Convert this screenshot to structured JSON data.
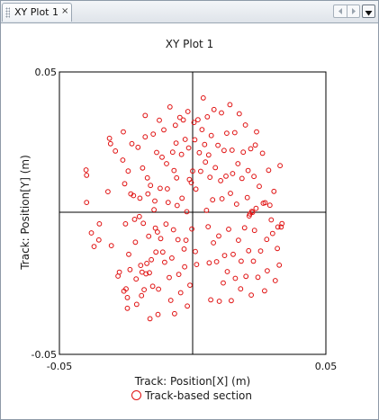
{
  "tab": {
    "label": "XY Plot 1",
    "close_glyph": "×"
  },
  "toolbar": {
    "prev_icon": "left-arrow-icon",
    "next_icon": "right-arrow-icon",
    "menu_icon": "dropdown-icon"
  },
  "colors": {
    "series": "#e01010",
    "axis": "#000000",
    "tab_border": "#9aa6b3"
  },
  "chart_data": {
    "type": "scatter",
    "title": "XY Plot 1",
    "xlabel": "Track: Position[X] (m)",
    "ylabel": "Track: Position[Y] (m)",
    "xlim": [
      -0.05,
      0.05
    ],
    "ylim": [
      -0.05,
      0.05
    ],
    "x_ticks": [
      "-0.05",
      "0.05"
    ],
    "y_ticks": [
      "0.05",
      "-0.05"
    ],
    "grid": "zero-lines",
    "legend_position": "bottom",
    "series": [
      {
        "name": "Track-based section",
        "marker": "open-circle",
        "points": [
          [
            -0.04,
            0.0153
          ],
          [
            -0.0398,
            0.0134
          ],
          [
            -0.0398,
            0.0038
          ],
          [
            -0.038,
            -0.007
          ],
          [
            -0.037,
            -0.0118
          ],
          [
            -0.0352,
            -0.0095
          ],
          [
            -0.035,
            -0.0038
          ],
          [
            -0.0318,
            0.0076
          ],
          [
            -0.0312,
            0.0265
          ],
          [
            -0.0308,
            0.0246
          ],
          [
            -0.0305,
            -0.0115
          ],
          [
            -0.029,
            0.022
          ],
          [
            -0.028,
            -0.0223
          ],
          [
            -0.0275,
            -0.0209
          ],
          [
            -0.0262,
            0.0188
          ],
          [
            -0.026,
            0.0288
          ],
          [
            -0.0258,
            -0.0276
          ],
          [
            -0.0255,
            0.0104
          ],
          [
            -0.0252,
            -0.0038
          ],
          [
            -0.025,
            -0.0268
          ],
          [
            -0.0245,
            -0.0299
          ],
          [
            -0.0245,
            -0.0337
          ],
          [
            -0.0242,
            0.0149
          ],
          [
            -0.024,
            -0.0146
          ],
          [
            -0.0235,
            -0.02
          ],
          [
            -0.0232,
            0.0068
          ],
          [
            -0.0228,
            0.0246
          ],
          [
            -0.0222,
            0.0062
          ],
          [
            -0.0218,
            -0.0022
          ],
          [
            -0.0215,
            -0.0103
          ],
          [
            -0.0212,
            -0.0233
          ],
          [
            -0.021,
            -0.0323
          ],
          [
            -0.0205,
            0.0233
          ],
          [
            -0.02,
            -0.0012
          ],
          [
            -0.0198,
            0.0053
          ],
          [
            -0.0195,
            -0.0185
          ],
          [
            -0.0192,
            -0.0292
          ],
          [
            -0.019,
            -0.0209
          ],
          [
            -0.0188,
            0.016
          ],
          [
            -0.0185,
            -0.0036
          ],
          [
            -0.0182,
            -0.0271
          ],
          [
            -0.0178,
            0.027
          ],
          [
            -0.0178,
            0.0346
          ],
          [
            -0.0175,
            -0.0215
          ],
          [
            -0.0172,
            -0.0178
          ],
          [
            -0.017,
            0.0125
          ],
          [
            -0.0168,
            0.0068
          ],
          [
            -0.0165,
            -0.0082
          ],
          [
            -0.0162,
            -0.0211
          ],
          [
            -0.016,
            -0.0374
          ],
          [
            -0.0158,
            0.0098
          ],
          [
            -0.0155,
            -0.0165
          ],
          [
            -0.015,
            -0.0259
          ],
          [
            -0.0148,
            0.028
          ],
          [
            -0.0145,
            0.0012
          ],
          [
            -0.0142,
            0.0043
          ],
          [
            -0.014,
            -0.0053
          ],
          [
            -0.0138,
            -0.0138
          ],
          [
            -0.0135,
            0.0215
          ],
          [
            -0.0132,
            -0.0067
          ],
          [
            -0.013,
            -0.0359
          ],
          [
            -0.0128,
            -0.0269
          ],
          [
            -0.0125,
            0.0329
          ],
          [
            -0.0122,
            0.0088
          ],
          [
            -0.012,
            -0.009
          ],
          [
            -0.0115,
            0.0198
          ],
          [
            -0.0112,
            -0.0138
          ],
          [
            -0.0108,
            0.0295
          ],
          [
            -0.0105,
            -0.0174
          ],
          [
            -0.01,
            -0.0039
          ],
          [
            -0.0098,
            0.0175
          ],
          [
            -0.0095,
            0.0086
          ],
          [
            -0.0092,
            0.0038
          ],
          [
            -0.0088,
            -0.0228
          ],
          [
            -0.0085,
            0.0376
          ],
          [
            -0.0082,
            -0.0309
          ],
          [
            -0.0078,
            -0.0159
          ],
          [
            -0.0075,
            0.0216
          ],
          [
            -0.0072,
            -0.0059
          ],
          [
            -0.007,
            0.0151
          ],
          [
            -0.0068,
            -0.0356
          ],
          [
            -0.0065,
            0.0311
          ],
          [
            -0.0062,
            0.0248
          ],
          [
            -0.006,
            0.0125
          ],
          [
            -0.0058,
            0.0027
          ],
          [
            -0.0055,
            -0.0094
          ],
          [
            -0.0052,
            -0.0217
          ],
          [
            -0.0048,
            0.0339
          ],
          [
            -0.0045,
            -0.0282
          ],
          [
            -0.0042,
            0.0208
          ],
          [
            -0.004,
            0.0053
          ],
          [
            -0.0035,
            0.033
          ],
          [
            -0.0032,
            -0.0127
          ],
          [
            -0.003,
            -0.019
          ],
          [
            -0.0028,
            0.0261
          ],
          [
            -0.0025,
            -0.0096
          ],
          [
            -0.0022,
            0.0005
          ],
          [
            -0.002,
            -0.0329
          ],
          [
            -0.0018,
            0.036
          ],
          [
            -0.0015,
            0.0231
          ],
          [
            -0.0012,
            0.0119
          ],
          [
            -0.001,
            -0.0255
          ],
          [
            -0.0005,
            0.0108
          ],
          [
            -0.0003,
            -0.0056
          ],
          [
            0.0,
            0.0149
          ],
          [
            0.0005,
            0.0321
          ],
          [
            0.0008,
            0.026
          ],
          [
            0.001,
            -0.0136
          ],
          [
            0.0012,
            0.0085
          ],
          [
            0.0015,
            -0.0182
          ],
          [
            0.002,
            0.0331
          ],
          [
            0.0025,
            0.0214
          ],
          [
            0.003,
            0.0148
          ],
          [
            0.0035,
            0.0296
          ],
          [
            0.004,
            0.0408
          ],
          [
            0.0045,
            0.0243
          ],
          [
            0.0048,
            0.0181
          ],
          [
            0.0052,
            0.001
          ],
          [
            0.0055,
            0.0341
          ],
          [
            0.0058,
            -0.0048
          ],
          [
            0.006,
            0.0206
          ],
          [
            0.0062,
            -0.0176
          ],
          [
            0.0065,
            0.0127
          ],
          [
            0.0068,
            -0.0307
          ],
          [
            0.007,
            0.0275
          ],
          [
            0.0075,
            0.0047
          ],
          [
            0.0078,
            -0.0105
          ],
          [
            0.008,
            0.0367
          ],
          [
            0.0085,
            0.0161
          ],
          [
            0.009,
            -0.0172
          ],
          [
            0.0095,
            0.024
          ],
          [
            0.0098,
            -0.0081
          ],
          [
            0.01,
            -0.0312
          ],
          [
            0.0105,
            0.0115
          ],
          [
            0.0108,
            0.0355
          ],
          [
            0.011,
            0.0051
          ],
          [
            0.0115,
            -0.0247
          ],
          [
            0.0118,
            0.0222
          ],
          [
            0.012,
            -0.015
          ],
          [
            0.0125,
            0.0131
          ],
          [
            0.0128,
            0.0283
          ],
          [
            0.013,
            -0.0207
          ],
          [
            0.0135,
            -0.0057
          ],
          [
            0.014,
            0.0384
          ],
          [
            0.0142,
            0.007
          ],
          [
            0.0145,
            -0.031
          ],
          [
            0.0148,
            0.0223
          ],
          [
            0.015,
            0.014
          ],
          [
            0.0152,
            -0.0146
          ],
          [
            0.0158,
            0.0285
          ],
          [
            0.016,
            -0.0231
          ],
          [
            0.0165,
            0.0032
          ],
          [
            0.017,
            0.0175
          ],
          [
            0.0172,
            -0.0096
          ],
          [
            0.0175,
            0.0352
          ],
          [
            0.018,
            -0.0268
          ],
          [
            0.0182,
            -0.017
          ],
          [
            0.0185,
            0.0123
          ],
          [
            0.019,
            0.0216
          ],
          [
            0.0195,
            -0.0052
          ],
          [
            0.0198,
            0.0312
          ],
          [
            0.02,
            -0.0224
          ],
          [
            0.0205,
            0.0055
          ],
          [
            0.0208,
            0.0151
          ],
          [
            0.021,
            -0.0133
          ],
          [
            0.0212,
            -0.001
          ],
          [
            0.0215,
            -0.0003
          ],
          [
            0.0218,
            0.0228
          ],
          [
            0.022,
            -0.029
          ],
          [
            0.0222,
            0.0006
          ],
          [
            0.0225,
            0.0003
          ],
          [
            0.0228,
            -0.017
          ],
          [
            0.023,
            0.013
          ],
          [
            0.0232,
            -0.0061
          ],
          [
            0.0235,
            0.0241
          ],
          [
            0.0238,
            0.0017
          ],
          [
            0.024,
            0.0288
          ],
          [
            0.0245,
            -0.0227
          ],
          [
            0.025,
            0.0095
          ],
          [
            0.0255,
            -0.0134
          ],
          [
            0.0262,
            0.0212
          ],
          [
            0.0265,
            0.0035
          ],
          [
            0.027,
            -0.0275
          ],
          [
            0.0272,
            0.0037
          ],
          [
            0.0278,
            -0.0093
          ],
          [
            0.028,
            -0.0204
          ],
          [
            0.0285,
            0.0152
          ],
          [
            0.029,
            0.0028
          ],
          [
            0.0295,
            -0.0024
          ],
          [
            0.03,
            -0.0072
          ],
          [
            0.0305,
            0.0077
          ],
          [
            0.031,
            -0.0239
          ],
          [
            0.0318,
            -0.0125
          ],
          [
            0.032,
            -0.0049
          ],
          [
            0.0325,
            -0.0184
          ],
          [
            0.0328,
            0.0168
          ],
          [
            0.0332,
            -0.0049
          ],
          [
            0.0335,
            -0.0037
          ]
        ]
      }
    ]
  }
}
